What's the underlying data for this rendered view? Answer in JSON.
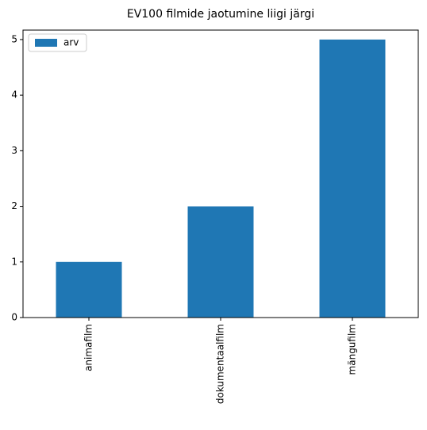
{
  "chart_data": {
    "type": "bar",
    "title": "EV100 filmide jaotumine liigi järgi",
    "categories": [
      "animafilm",
      "dokumentaalfilm",
      "mängufilm"
    ],
    "series": [
      {
        "name": "arv",
        "color": "#1f77b4",
        "values": [
          1,
          2,
          5
        ]
      }
    ],
    "ylim": [
      0,
      5.17
    ],
    "yticks": [
      0,
      1,
      2,
      3,
      4,
      5
    ],
    "legend": "upper left"
  }
}
